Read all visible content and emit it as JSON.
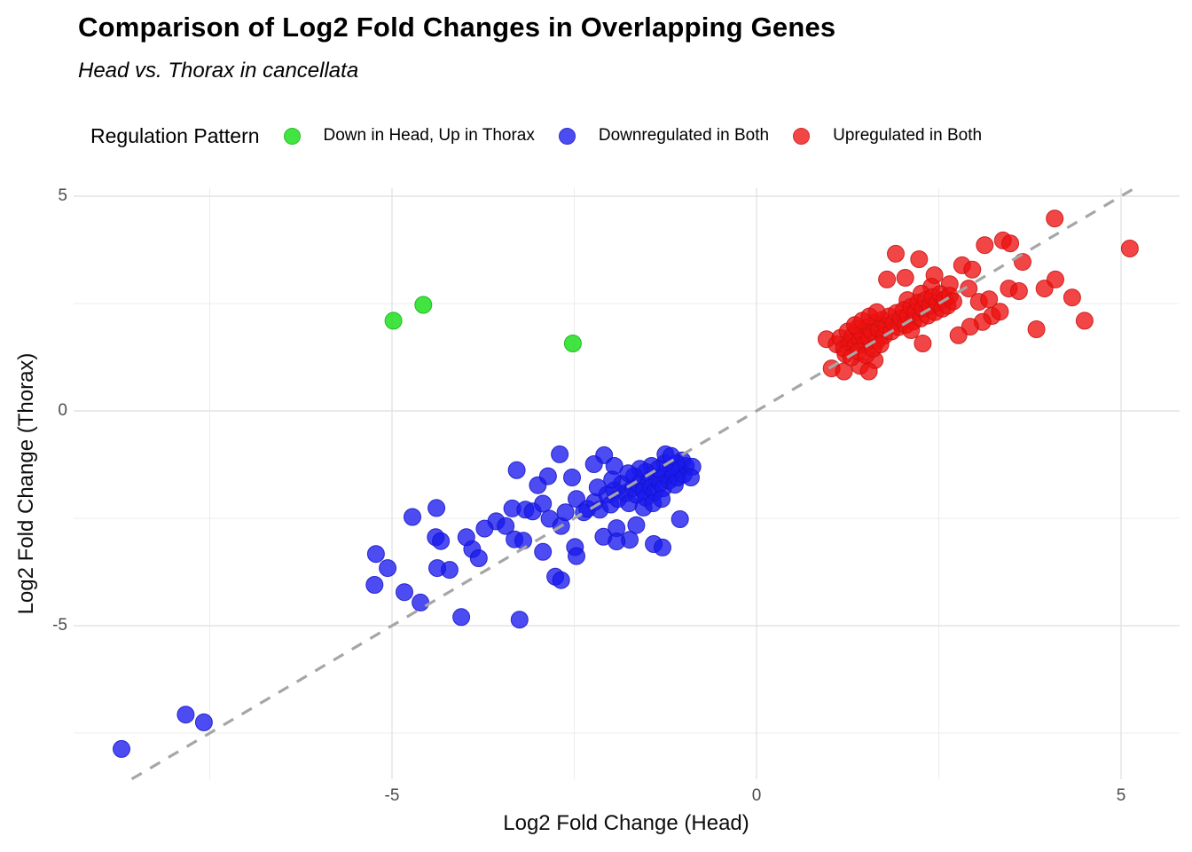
{
  "title": "Comparison of Log2 Fold Changes in Overlapping Genes",
  "subtitle": "Head vs. Thorax in cancellata",
  "legend": {
    "title": "Regulation Pattern",
    "items": [
      {
        "label": "Down in Head, Up in Thorax",
        "swatch_color": "#41e441",
        "swatch_border": "#2bbf2b",
        "series": "down_head_up_thorax"
      },
      {
        "label": "Downregulated in Both",
        "swatch_color": "#4c4cf0",
        "swatch_border": "#2d2dd6",
        "series": "down_both"
      },
      {
        "label": "Upregulated in Both",
        "swatch_color": "#f24545",
        "swatch_border": "#d62d2d",
        "series": "up_both"
      }
    ]
  },
  "colors": {
    "background": "#ffffff",
    "major_grid": "#e3e3e3",
    "minor_grid": "#ececec",
    "reference_line": "#a6a6a6",
    "tick_label": "#4d4d4d",
    "axis_title": "#0d0d0d"
  },
  "chart_data": {
    "type": "scatter",
    "title": "Comparison of Log2 Fold Changes in Overlapping Genes",
    "subtitle": "Head vs. Thorax in cancellata",
    "xlabel": "Log2 Fold Change (Head)",
    "ylabel": "Log2 Fold Change (Thorax)",
    "xlim": [
      -9.37,
      5.8
    ],
    "ylim": [
      -8.57,
      5.19
    ],
    "x_ticks": [
      -5,
      0,
      5
    ],
    "y_ticks": [
      -5,
      0,
      5
    ],
    "x_minor_ticks": [
      -7.5,
      -2.5,
      2.5
    ],
    "y_minor_ticks": [
      -7.5,
      -2.5,
      2.5
    ],
    "grid": true,
    "legend_position": "top",
    "reference_line": {
      "type": "identity y=x",
      "style": "dashed",
      "color": "#a6a6a6"
    },
    "series": [
      {
        "name": "Down in Head, Up in Thorax",
        "fill": "#11dd11",
        "fill_opacity": 0.8,
        "stroke": "#0fb30f",
        "points": [
          [
            -4.98,
            2.1
          ],
          [
            -4.57,
            2.47
          ],
          [
            -2.52,
            1.57
          ]
        ]
      },
      {
        "name": "Downregulated in Both",
        "fill": "#1a1aee",
        "fill_opacity": 0.78,
        "stroke": "#1414c8",
        "points": [
          [
            -8.71,
            -7.87
          ],
          [
            -7.83,
            -7.07
          ],
          [
            -7.58,
            -7.25
          ],
          [
            -5.22,
            -3.33
          ],
          [
            -5.06,
            -3.66
          ],
          [
            -5.24,
            -4.05
          ],
          [
            -4.83,
            -4.22
          ],
          [
            -4.61,
            -4.46
          ],
          [
            -4.05,
            -4.8
          ],
          [
            -3.25,
            -4.86
          ],
          [
            -4.21,
            -3.7
          ],
          [
            -4.38,
            -3.66
          ],
          [
            -3.9,
            -3.22
          ],
          [
            -3.81,
            -3.43
          ],
          [
            -3.57,
            -2.57
          ],
          [
            -3.44,
            -2.68
          ],
          [
            -3.32,
            -2.99
          ],
          [
            -3.2,
            -3.02
          ],
          [
            -4.39,
            -2.26
          ],
          [
            -4.72,
            -2.47
          ],
          [
            -4.4,
            -2.94
          ],
          [
            -4.33,
            -3.03
          ],
          [
            -3.73,
            -2.74
          ],
          [
            -3.98,
            -2.94
          ],
          [
            -3.35,
            -2.27
          ],
          [
            -3.29,
            -1.38
          ],
          [
            -2.7,
            -1.01
          ],
          [
            -3.17,
            -2.3
          ],
          [
            -3.07,
            -2.34
          ],
          [
            -2.93,
            -2.16
          ],
          [
            -2.84,
            -2.51
          ],
          [
            -2.68,
            -2.68
          ],
          [
            -2.93,
            -3.28
          ],
          [
            -2.76,
            -3.86
          ],
          [
            -2.68,
            -3.94
          ],
          [
            -2.49,
            -3.17
          ],
          [
            -2.47,
            -3.38
          ],
          [
            -2.86,
            -1.52
          ],
          [
            -3.0,
            -1.73
          ],
          [
            -2.53,
            -1.55
          ],
          [
            -2.47,
            -2.05
          ],
          [
            -2.37,
            -2.36
          ],
          [
            -2.62,
            -2.36
          ],
          [
            -2.09,
            -1.03
          ],
          [
            -2.23,
            -1.24
          ],
          [
            -1.95,
            -1.28
          ],
          [
            -2.1,
            -2.93
          ],
          [
            -1.92,
            -2.73
          ],
          [
            -1.65,
            -2.66
          ],
          [
            -1.74,
            -3.0
          ],
          [
            -1.92,
            -3.04
          ],
          [
            -1.41,
            -3.1
          ],
          [
            -1.29,
            -3.18
          ],
          [
            -1.05,
            -2.52
          ],
          [
            -2.32,
            -2.28
          ],
          [
            -2.22,
            -2.12
          ],
          [
            -2.15,
            -2.3
          ],
          [
            -2.05,
            -1.95
          ],
          [
            -2.18,
            -1.78
          ],
          [
            -2.0,
            -2.18
          ],
          [
            -1.95,
            -1.85
          ],
          [
            -1.9,
            -2.05
          ],
          [
            -1.85,
            -1.7
          ],
          [
            -1.98,
            -1.6
          ],
          [
            -1.8,
            -1.92
          ],
          [
            -1.75,
            -2.15
          ],
          [
            -1.7,
            -1.8
          ],
          [
            -1.65,
            -1.95
          ],
          [
            -1.62,
            -1.7
          ],
          [
            -1.55,
            -1.85
          ],
          [
            -1.52,
            -2.02
          ],
          [
            -1.48,
            -1.62
          ],
          [
            -1.45,
            -1.78
          ],
          [
            -1.4,
            -1.9
          ],
          [
            -1.38,
            -1.55
          ],
          [
            -1.32,
            -1.68
          ],
          [
            -1.28,
            -1.8
          ],
          [
            -1.25,
            -1.5
          ],
          [
            -1.2,
            -1.62
          ],
          [
            -1.15,
            -1.45
          ],
          [
            -1.12,
            -1.72
          ],
          [
            -1.08,
            -1.55
          ],
          [
            -1.05,
            -1.35
          ],
          [
            -1.0,
            -1.48
          ],
          [
            -0.97,
            -1.28
          ],
          [
            -1.02,
            -1.15
          ],
          [
            -1.1,
            -1.22
          ],
          [
            -1.18,
            -1.32
          ],
          [
            -1.26,
            -1.22
          ],
          [
            -1.35,
            -1.35
          ],
          [
            -1.44,
            -1.28
          ],
          [
            -1.52,
            -1.42
          ],
          [
            -1.6,
            -1.35
          ],
          [
            -1.68,
            -1.52
          ],
          [
            -1.76,
            -1.45
          ],
          [
            -1.25,
            -1.01
          ],
          [
            -1.17,
            -1.05
          ],
          [
            -1.55,
            -2.25
          ],
          [
            -1.42,
            -2.15
          ],
          [
            -1.3,
            -2.05
          ],
          [
            -0.88,
            -1.3
          ],
          [
            -0.9,
            -1.55
          ]
        ]
      },
      {
        "name": "Upregulated in Both",
        "fill": "#ee1111",
        "fill_opacity": 0.78,
        "stroke": "#c81111",
        "points": [
          [
            4.09,
            4.48
          ],
          [
            5.12,
            3.78
          ],
          [
            3.38,
            3.97
          ],
          [
            3.48,
            3.9
          ],
          [
            3.13,
            3.86
          ],
          [
            3.65,
            3.47
          ],
          [
            1.91,
            3.66
          ],
          [
            2.23,
            3.53
          ],
          [
            2.82,
            3.39
          ],
          [
            2.96,
            3.29
          ],
          [
            1.79,
            3.06
          ],
          [
            2.04,
            3.1
          ],
          [
            2.44,
            3.16
          ],
          [
            2.65,
            2.95
          ],
          [
            2.91,
            2.85
          ],
          [
            3.46,
            2.85
          ],
          [
            3.6,
            2.79
          ],
          [
            3.95,
            2.85
          ],
          [
            4.33,
            2.64
          ],
          [
            4.5,
            2.1
          ],
          [
            3.84,
            1.9
          ],
          [
            3.23,
            2.21
          ],
          [
            3.34,
            2.31
          ],
          [
            3.1,
            2.07
          ],
          [
            2.93,
            1.96
          ],
          [
            2.77,
            1.76
          ],
          [
            2.4,
            2.89
          ],
          [
            2.26,
            2.73
          ],
          [
            2.07,
            2.58
          ],
          [
            0.96,
            1.67
          ],
          [
            1.03,
            0.99
          ],
          [
            1.2,
            0.92
          ],
          [
            4.1,
            3.06
          ],
          [
            3.05,
            2.54
          ],
          [
            3.19,
            2.6
          ],
          [
            1.42,
            1.05
          ],
          [
            1.62,
            1.18
          ],
          [
            1.54,
            0.92
          ],
          [
            1.1,
            1.55
          ],
          [
            1.15,
            1.7
          ],
          [
            1.2,
            1.45
          ],
          [
            1.25,
            1.85
          ],
          [
            1.28,
            1.6
          ],
          [
            1.32,
            1.75
          ],
          [
            1.35,
            1.5
          ],
          [
            1.38,
            1.92
          ],
          [
            1.42,
            1.65
          ],
          [
            1.45,
            1.8
          ],
          [
            1.48,
            1.55
          ],
          [
            1.52,
            1.95
          ],
          [
            1.55,
            1.7
          ],
          [
            1.58,
            1.85
          ],
          [
            1.62,
            2.05
          ],
          [
            1.65,
            1.62
          ],
          [
            1.68,
            1.9
          ],
          [
            1.72,
            2.12
          ],
          [
            1.75,
            1.75
          ],
          [
            1.78,
            1.98
          ],
          [
            1.82,
            2.2
          ],
          [
            1.85,
            1.85
          ],
          [
            1.88,
            2.05
          ],
          [
            1.92,
            2.28
          ],
          [
            1.95,
            1.95
          ],
          [
            1.98,
            2.15
          ],
          [
            2.02,
            2.35
          ],
          [
            2.05,
            2.0
          ],
          [
            2.08,
            2.22
          ],
          [
            2.12,
            2.42
          ],
          [
            2.15,
            2.08
          ],
          [
            2.18,
            2.3
          ],
          [
            2.22,
            2.52
          ],
          [
            2.25,
            2.15
          ],
          [
            2.28,
            2.38
          ],
          [
            2.32,
            2.58
          ],
          [
            2.35,
            2.22
          ],
          [
            2.38,
            2.45
          ],
          [
            2.42,
            2.65
          ],
          [
            2.45,
            2.3
          ],
          [
            2.48,
            2.52
          ],
          [
            2.52,
            2.72
          ],
          [
            2.55,
            2.38
          ],
          [
            2.58,
            2.6
          ],
          [
            2.62,
            2.45
          ],
          [
            2.65,
            2.68
          ],
          [
            2.7,
            2.55
          ],
          [
            1.22,
            1.32
          ],
          [
            1.3,
            1.25
          ],
          [
            1.4,
            1.38
          ],
          [
            1.5,
            1.3
          ],
          [
            1.6,
            1.45
          ],
          [
            1.7,
            1.55
          ],
          [
            1.35,
            2.0
          ],
          [
            1.45,
            2.1
          ],
          [
            1.55,
            2.2
          ],
          [
            1.65,
            2.3
          ],
          [
            2.28,
            1.57
          ],
          [
            2.12,
            1.88
          ]
        ]
      }
    ]
  }
}
